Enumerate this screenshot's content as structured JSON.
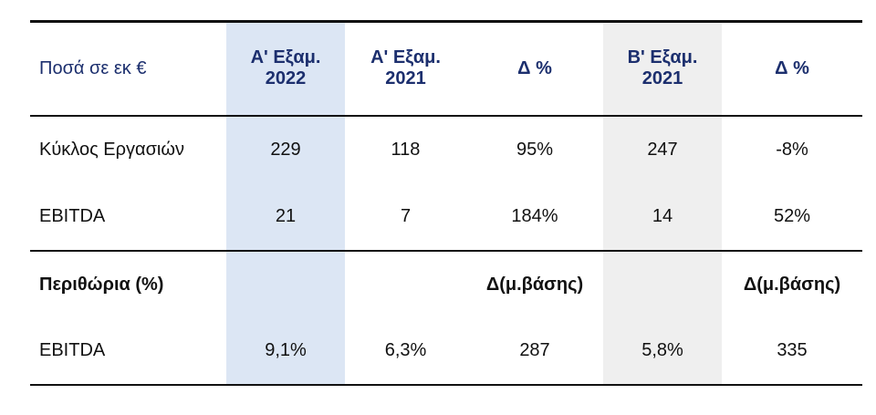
{
  "table": {
    "header": {
      "label": "Ποσά σε εκ €",
      "col1_line1": "Α' Εξαμ.",
      "col1_line2": "2022",
      "col2_line1": "Α' Εξαμ.",
      "col2_line2": "2021",
      "col3": "Δ %",
      "col4_line1": "Β' Εξαμ.",
      "col4_line2": "2021",
      "col5": "Δ %"
    },
    "rows": [
      {
        "label": "Κύκλος Εργασιών",
        "h1_2022": "229",
        "h1_2021": "118",
        "delta1": "95%",
        "h2_2021": "247",
        "delta2": "-8%"
      },
      {
        "label": "EBITDA",
        "h1_2022": "21",
        "h1_2021": "7",
        "delta1": "184%",
        "h2_2021": "14",
        "delta2": "52%"
      }
    ],
    "margins_header": {
      "label": "Περιθώρια (%)",
      "delta1": "Δ(μ.βάσης)",
      "delta2": "Δ(μ.βάσης)"
    },
    "margin_rows": [
      {
        "label": "EBITDA",
        "h1_2022": "9,1%",
        "h1_2021": "6,3%",
        "delta1": "287",
        "h2_2021": "5,8%",
        "delta2": "335"
      }
    ]
  },
  "colors": {
    "header_text": "#1c2f6e",
    "highlight_h1_2022": "#dce6f4",
    "highlight_h2_2021": "#efefef"
  }
}
